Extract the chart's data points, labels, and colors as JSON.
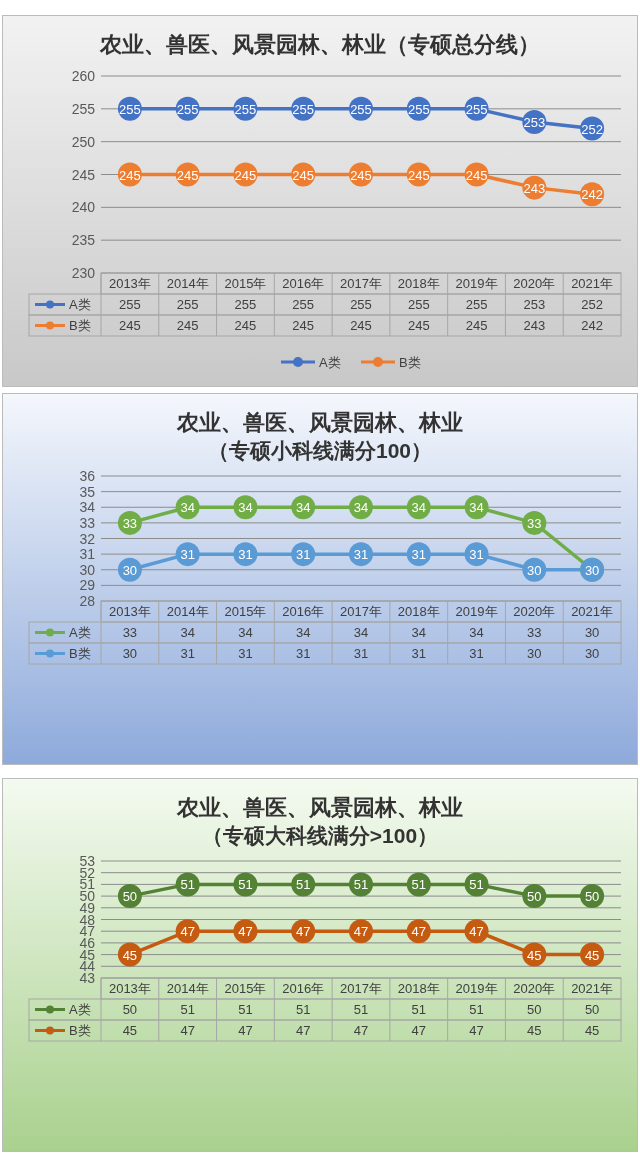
{
  "chart_data": [
    {
      "type": "line",
      "title": "农业、兽医、风景园林、林业（专硕总分线）",
      "categories": [
        "2013年",
        "2014年",
        "2015年",
        "2016年",
        "2017年",
        "2018年",
        "2019年",
        "2020年",
        "2021年"
      ],
      "ylim": [
        230,
        260
      ],
      "yticks": [
        230,
        235,
        240,
        245,
        250,
        255,
        260
      ],
      "grid": "y",
      "marker": "circle",
      "data_labels": true,
      "legend": "bottom",
      "series": [
        {
          "name": "A类",
          "color": "#4472c4",
          "values": [
            255,
            255,
            255,
            255,
            255,
            255,
            255,
            253,
            252
          ]
        },
        {
          "name": "B类",
          "color": "#ed7d31",
          "values": [
            245,
            245,
            245,
            245,
            245,
            245,
            245,
            243,
            242
          ]
        }
      ],
      "annotations": [
        "255",
        "255",
        "255",
        "255",
        "255",
        "255",
        "255",
        "253",
        "252",
        "245",
        "245",
        "245",
        "245",
        "245",
        "245",
        "245",
        "243",
        "242"
      ]
    },
    {
      "type": "line",
      "title": "农业、兽医、风景园林、林业",
      "subtitle": "（专硕小科线满分100）",
      "categories": [
        "2013年",
        "2014年",
        "2015年",
        "2016年",
        "2017年",
        "2018年",
        "2019年",
        "2020年",
        "2021年"
      ],
      "ylim": [
        28,
        36
      ],
      "yticks": [
        28,
        29,
        30,
        31,
        32,
        33,
        34,
        35,
        36
      ],
      "grid": "y",
      "marker": "circle",
      "data_labels": true,
      "legend": "bottom left",
      "series": [
        {
          "name": "A类",
          "color": "#70ad47",
          "values": [
            33,
            34,
            34,
            34,
            34,
            34,
            34,
            33,
            30
          ]
        },
        {
          "name": "B类",
          "color": "#5b9bd5",
          "values": [
            30,
            31,
            31,
            31,
            31,
            31,
            31,
            30,
            30
          ]
        }
      ],
      "annotations": [
        "33",
        "34",
        "34",
        "34",
        "34",
        "34",
        "34",
        "33",
        "30",
        "30",
        "31",
        "31",
        "31",
        "31",
        "31",
        "31",
        "30",
        "30"
      ]
    },
    {
      "type": "line",
      "title": "农业、兽医、风景园林、林业",
      "subtitle": "（专硕大科线满分>100）",
      "categories": [
        "2013年",
        "2014年",
        "2015年",
        "2016年",
        "2017年",
        "2018年",
        "2019年",
        "2020年",
        "2021年"
      ],
      "ylim": [
        43,
        53
      ],
      "yticks": [
        43,
        44,
        45,
        46,
        47,
        48,
        49,
        50,
        51,
        52,
        53
      ],
      "grid": "y",
      "marker": "circle",
      "data_labels": true,
      "legend": "bottom left",
      "series": [
        {
          "name": "A类",
          "color": "#548235",
          "values": [
            50,
            51,
            51,
            51,
            51,
            51,
            51,
            50,
            50
          ]
        },
        {
          "name": "B类",
          "color": "#c55a11",
          "values": [
            45,
            47,
            47,
            47,
            47,
            47,
            47,
            45,
            45
          ]
        }
      ],
      "annotations": [
        "50",
        "51",
        "51",
        "51",
        "51",
        "51",
        "51",
        "50",
        "50",
        "45",
        "47",
        "47",
        "47",
        "47",
        "47",
        "47",
        "45",
        "45"
      ]
    }
  ]
}
